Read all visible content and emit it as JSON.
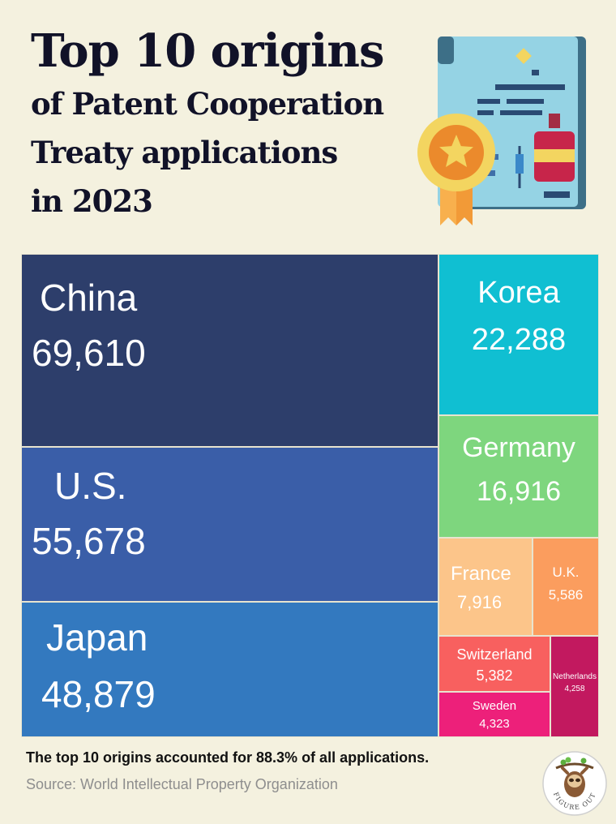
{
  "title": {
    "line1": "Top 10 origins",
    "line2": "of Patent Cooperation",
    "line3": "Treaty  applications",
    "line4": "in 2023"
  },
  "chart_data": {
    "type": "treemap",
    "title": "Top 10 origins of Patent Cooperation Treaty applications in 2023",
    "series": [
      {
        "name": "China",
        "value": 69610,
        "label": "69,610",
        "color": "#2d3e6b"
      },
      {
        "name": "U.S.",
        "value": 55678,
        "label": "55,678",
        "color": "#3a5ea8"
      },
      {
        "name": "Japan",
        "value": 48879,
        "label": "48,879",
        "color": "#3379bf"
      },
      {
        "name": "Korea",
        "value": 22288,
        "label": "22,288",
        "color": "#10bfd2"
      },
      {
        "name": "Germany",
        "value": 16916,
        "label": "16,916",
        "color": "#7ed67e"
      },
      {
        "name": "France",
        "value": 7916,
        "label": "7,916",
        "color": "#fcc58a"
      },
      {
        "name": "U.K.",
        "value": 5586,
        "label": "5,586",
        "color": "#fb9d5e"
      },
      {
        "name": "Switzerland",
        "value": 5382,
        "label": "5,382",
        "color": "#f8605f"
      },
      {
        "name": "Sweden",
        "value": 4323,
        "label": "4,323",
        "color": "#ed207a"
      },
      {
        "name": "Netherlands",
        "value": 4258,
        "label": "4,258",
        "color": "#c2195f"
      }
    ]
  },
  "footer": {
    "note": "The top 10 origins accounted for 88.3% of all applications.",
    "source": "Source: World Intellectual Property Organization"
  },
  "logo": {
    "text": "FIGURE OUT",
    "icon": "sloth-icon"
  },
  "illustration": {
    "icon": "patent-certificate-icon"
  },
  "colors": {
    "background": "#f4f1df",
    "title": "#111228"
  }
}
